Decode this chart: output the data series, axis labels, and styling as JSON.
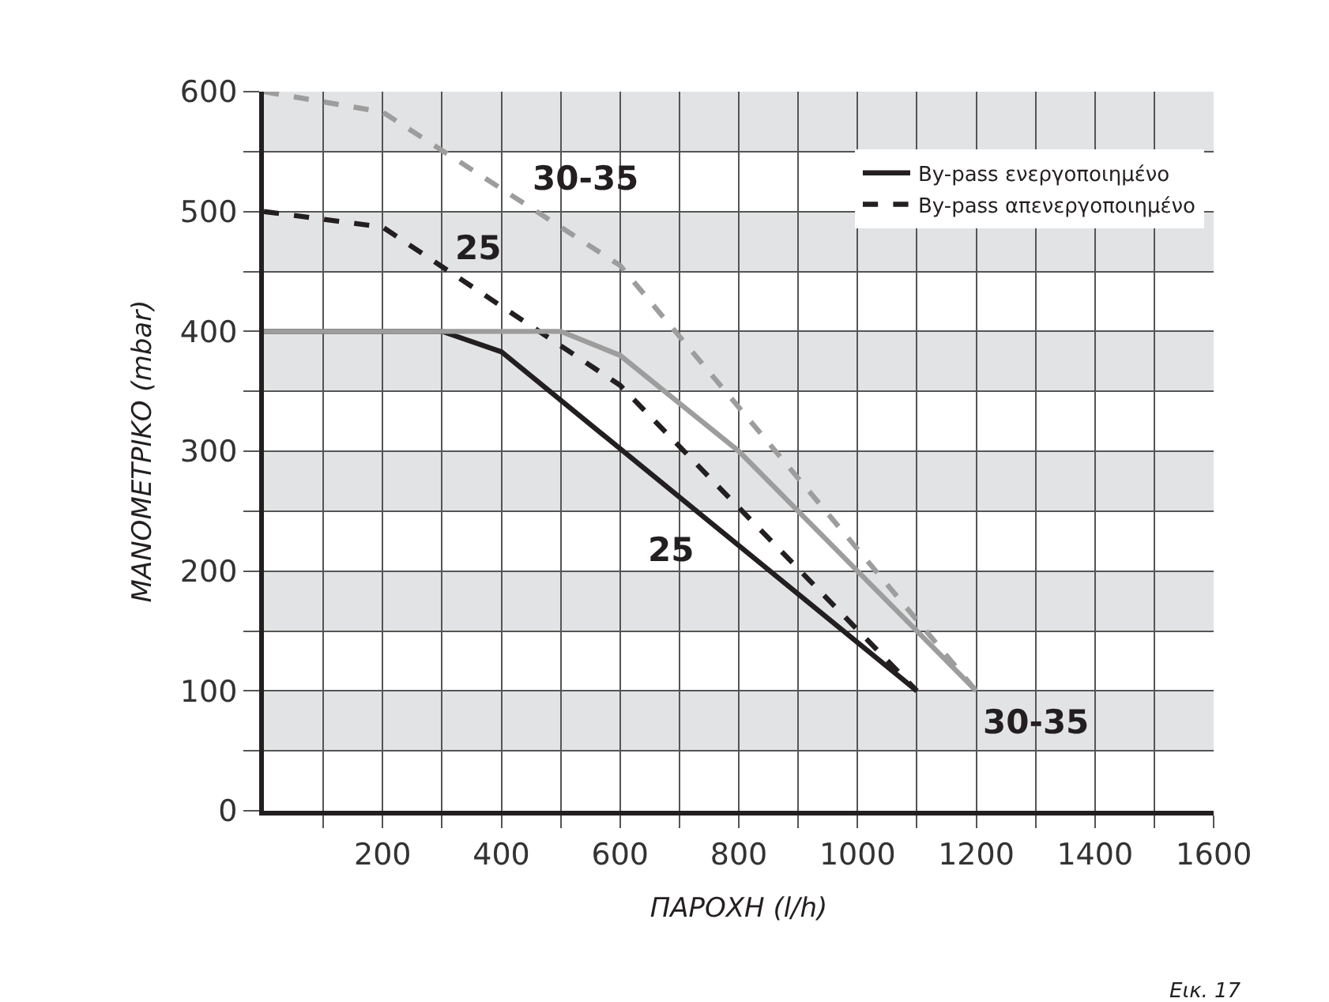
{
  "chart_data": {
    "type": "line",
    "xlabel": "ΠΑΡΟΧΗ (l/h)",
    "ylabel": "ΜΑΝΟΜΕΤΡΙΚΟ (mbar)",
    "xlim": [
      0,
      1600
    ],
    "ylim": [
      0,
      600
    ],
    "xticks": [
      {
        "value": 100,
        "label": null
      },
      200,
      {
        "value": 300,
        "label": null
      },
      400,
      {
        "value": 500,
        "label": null
      },
      600,
      {
        "value": 700,
        "label": null
      },
      800,
      {
        "value": 900,
        "label": null
      },
      1000,
      {
        "value": 1100,
        "label": null
      },
      1200,
      {
        "value": 1300,
        "label": null
      },
      1400,
      {
        "value": 1500,
        "label": null
      },
      1600
    ],
    "yticks": [
      0,
      {
        "value": 50,
        "label": null
      },
      100,
      {
        "value": 150,
        "label": null
      },
      200,
      {
        "value": 250,
        "label": null
      },
      300,
      {
        "value": 350,
        "label": null
      },
      400,
      {
        "value": 450,
        "label": null
      },
      500,
      {
        "value": 550,
        "label": null
      },
      600
    ],
    "grid": true,
    "legend": "top right",
    "series": [
      {
        "name": "By-pass ενεργοποιημένο",
        "color": "#231f20",
        "line_style": "solid",
        "x": [
          0,
          300,
          400,
          1100
        ],
        "values": [
          400,
          400,
          383,
          100
        ]
      },
      {
        "name": "By-pass απενεργοποιημένο",
        "color": "#231f20",
        "line_style": "dashed",
        "x": [
          0,
          200,
          600,
          1100
        ],
        "values": [
          500,
          487,
          355,
          100
        ]
      },
      {
        "color": "#9d9d9d",
        "line_style": "solid",
        "x": [
          0,
          500,
          600,
          800,
          1200
        ],
        "values": [
          400,
          400,
          380,
          300,
          100
        ]
      },
      {
        "color": "#9d9d9d",
        "line_style": "dashed",
        "x": [
          0,
          200,
          600,
          1200
        ],
        "values": [
          600,
          583,
          455,
          100
        ]
      }
    ],
    "bands": [
      {
        "axis": "y",
        "from": 50,
        "to": 100,
        "color": "#e2e3e5"
      },
      {
        "axis": "y",
        "from": 150,
        "to": 200,
        "color": "#e2e3e5"
      },
      {
        "axis": "y",
        "from": 250,
        "to": 300,
        "color": "#e2e3e5"
      },
      {
        "axis": "y",
        "from": 350,
        "to": 400,
        "color": "#e2e3e5"
      },
      {
        "axis": "y",
        "from": 450,
        "to": 500,
        "color": "#e2e3e5"
      },
      {
        "axis": "y",
        "from": 550,
        "to": 600,
        "color": "#e2e3e5"
      }
    ],
    "annotations": [
      "30-35",
      "25",
      "25",
      "30-35",
      "Εικ. 17"
    ]
  }
}
